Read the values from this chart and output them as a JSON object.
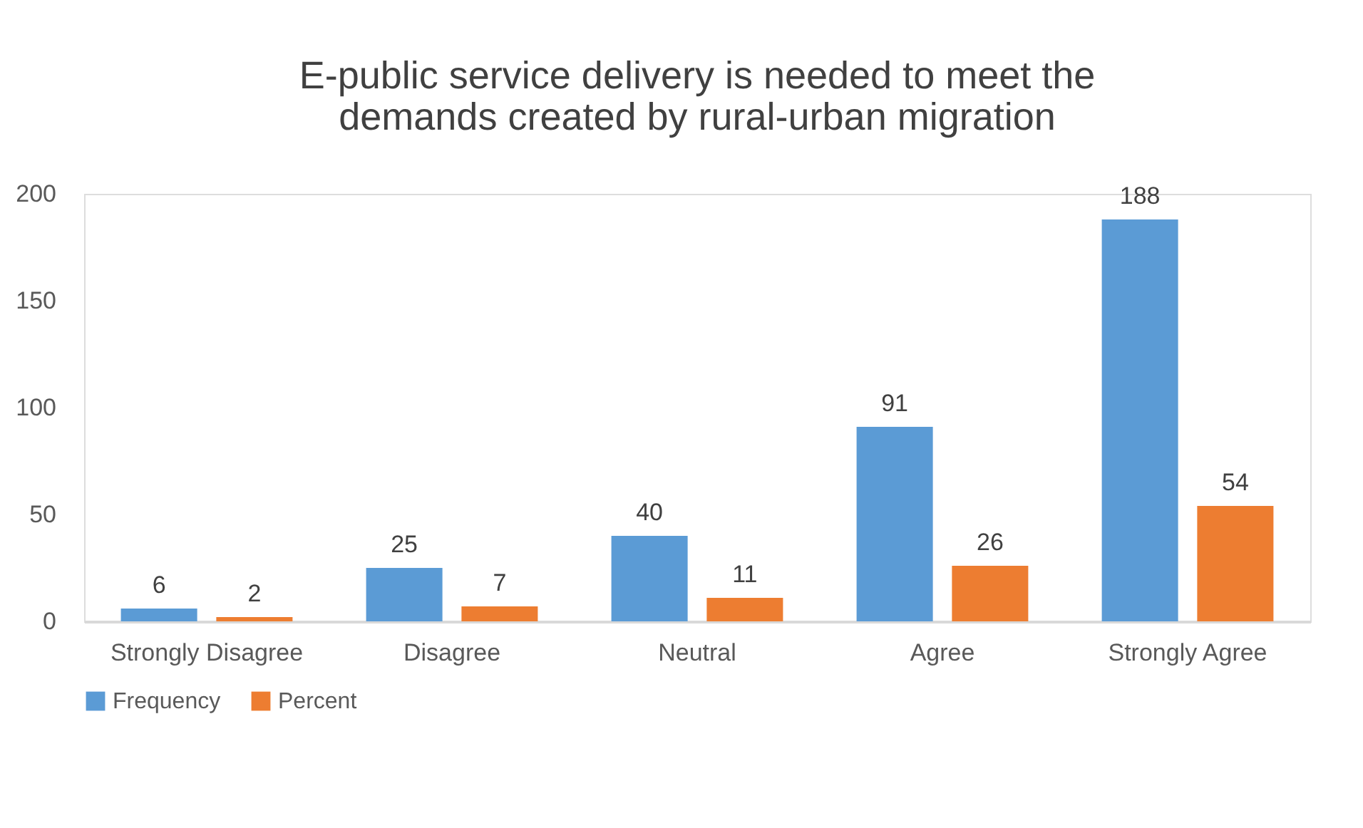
{
  "chart_data": {
    "type": "bar",
    "title": [
      "E-public service delivery is needed to meet the",
      "demands created by rural-urban migration"
    ],
    "categories": [
      "Strongly Disagree",
      "Disagree",
      "Neutral",
      "Agree",
      "Strongly Agree"
    ],
    "series": [
      {
        "name": "Frequency",
        "color": "#5b9bd5",
        "values": [
          6,
          25,
          40,
          91,
          188
        ]
      },
      {
        "name": "Percent",
        "color": "#ed7d31",
        "values": [
          2,
          7,
          11,
          26,
          54
        ]
      }
    ],
    "ylim": [
      0,
      200
    ],
    "yticks": [
      0,
      50,
      100,
      150,
      200
    ],
    "grid": false,
    "legend": "bottom",
    "data_labels": true
  }
}
